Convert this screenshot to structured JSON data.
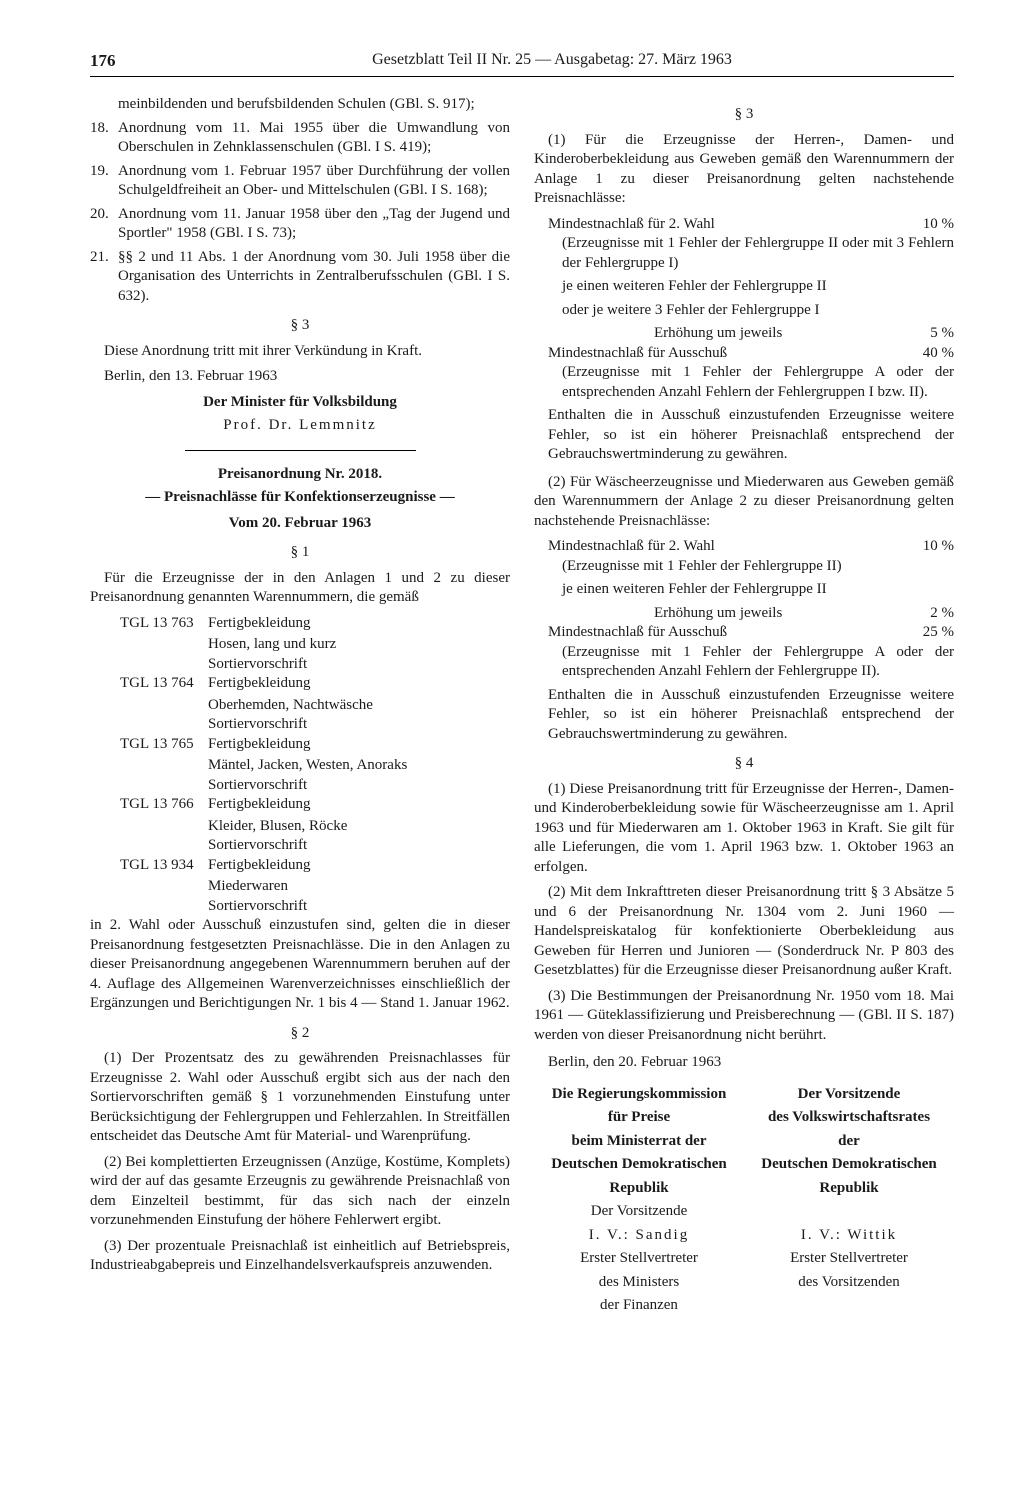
{
  "page_number": "176",
  "header": "Gesetzblatt Teil II Nr. 25 — Ausgabetag: 27. März 1963",
  "left": {
    "item17_cont": "meinbildenden und berufsbildenden Schulen (GBl. S. 917);",
    "item18": "Anordnung vom 11. Mai 1955 über die Umwandlung von Oberschulen in Zehnklassenschulen (GBl. I S. 419);",
    "item19": "Anordnung vom 1. Februar 1957 über Durchführung der vollen Schulgeldfreiheit an Ober- und Mittelschulen (GBl. I S. 168);",
    "item20": "Anordnung vom 11. Januar 1958 über den „Tag der Jugend und Sportler\" 1958 (GBl. I S. 73);",
    "item21": "§§ 2 und 11 Abs. 1 der Anordnung vom 30. Juli 1958 über die Organisation des Unterrichts in Zentralberufsschulen (GBl. I S. 632).",
    "s3": "§ 3",
    "s3_text": "Diese Anordnung tritt mit ihrer Verkündung in Kraft.",
    "date1": "Berlin, den 13. Februar 1963",
    "sign1_title": "Der Minister für Volksbildung",
    "sign1_name": "Prof. Dr. Lemmnitz",
    "order_title1": "Preisanordnung Nr. 2018.",
    "order_title2": "— Preisnachlässe für Konfektionserzeugnisse —",
    "order_date": "Vom 20. Februar 1963",
    "s1": "§ 1",
    "s1_intro": "Für die Erzeugnisse der in den Anlagen 1 und 2 zu dieser Preisanordnung genannten Warennummern, die gemäß",
    "tgl": [
      {
        "code": "TGL 13 763",
        "t": "Fertigbekleidung",
        "l2": "Hosen, lang und kurz",
        "l3": "Sortiervorschrift"
      },
      {
        "code": "TGL 13 764",
        "t": "Fertigbekleidung",
        "l2": "Oberhemden, Nachtwäsche",
        "l3": "Sortiervorschrift"
      },
      {
        "code": "TGL 13 765",
        "t": "Fertigbekleidung",
        "l2": "Mäntel, Jacken, Westen, Anoraks",
        "l3": "Sortiervorschrift"
      },
      {
        "code": "TGL 13 766",
        "t": "Fertigbekleidung",
        "l2": "Kleider, Blusen, Röcke",
        "l3": "Sortiervorschrift"
      },
      {
        "code": "TGL 13 934",
        "t": "Fertigbekleidung",
        "l2": "Miederwaren",
        "l3": "Sortiervorschrift"
      }
    ],
    "s1_after": "in 2. Wahl oder Ausschuß einzustufen sind, gelten die in dieser Preisanordnung festgesetzten Preisnachlässe. Die in den Anlagen zu dieser Preisanordnung angegebenen Warennummern beruhen auf der 4. Auflage des Allgemeinen Warenverzeichnisses einschließlich der Ergänzungen und Berichtigungen Nr. 1 bis 4 — Stand 1. Januar 1962.",
    "s2": "§ 2",
    "s2_p1": "(1) Der Prozentsatz des zu gewährenden Preisnachlasses für Erzeugnisse 2. Wahl oder Ausschuß ergibt sich aus der nach den Sortiervorschriften gemäß § 1 vorzunehmenden Einstufung unter Berücksichtigung der Fehlergruppen und Fehlerzahlen. In Streitfällen entscheidet das Deutsche Amt für Material- und Warenprüfung.",
    "s2_p2": "(2) Bei komplettierten Erzeugnissen (Anzüge, Kostüme, Komplets) wird der auf das gesamte Erzeugnis zu gewährende Preisnachlaß von dem Einzelteil bestimmt, für das sich nach der einzeln vorzunehmenden Einstufung der höhere Fehlerwert ergibt.",
    "s2_p3": "(3) Der prozentuale Preisnachlaß ist einheitlich auf Betriebspreis, Industrieabgabepreis und Einzelhandelsverkaufspreis anzuwenden."
  },
  "right": {
    "s3": "§ 3",
    "s3_p1": "(1) Für die Erzeugnisse der Herren-, Damen- und Kinderoberbekleidung aus Geweben gemäß den Warennummern der Anlage 1 zu dieser Preisanordnung gelten nachstehende Preisnachlässe:",
    "d1_label": "Mindestnachlaß für 2. Wahl",
    "d1_val": "10 %",
    "d1_sub": "(Erzeugnisse mit 1 Fehler der Fehlergruppe II oder mit 3 Fehlern der Fehlergruppe I)",
    "d2a": "je einen weiteren Fehler der Fehlergruppe II",
    "d2b": "oder je weitere 3 Fehler der Fehlergruppe I",
    "d2_label": "Erhöhung um jeweils",
    "d2_val": "5 %",
    "d3_label": "Mindestnachlaß für Ausschuß",
    "d3_val": "40 %",
    "d3_sub": "(Erzeugnisse mit 1 Fehler der Fehlergruppe A oder der entsprechenden Anzahl Fehlern der Fehlergruppen I bzw. II).",
    "d_after1": "Enthalten die in Ausschuß einzustufenden Erzeugnisse weitere Fehler, so ist ein höherer Preisnachlaß entsprechend der Gebrauchswertminderung zu gewähren.",
    "s3_p2": "(2) Für Wäscheerzeugnisse und Miederwaren aus Geweben gemäß den Warennummern der Anlage 2 zu dieser Preisanordnung gelten nachstehende Preisnachlässe:",
    "e1_label": "Mindestnachlaß für 2. Wahl",
    "e1_val": "10 %",
    "e1_sub": "(Erzeugnisse mit 1 Fehler der Fehlergruppe II)",
    "e2a": "je einen weiteren Fehler der Fehlergruppe II",
    "e2_label": "Erhöhung um jeweils",
    "e2_val": "2 %",
    "e3_label": "Mindestnachlaß für Ausschuß",
    "e3_val": "25 %",
    "e3_sub": "(Erzeugnisse mit 1 Fehler der Fehlergruppe A oder der entsprechenden Anzahl Fehlern der Fehlergruppe II).",
    "e_after": "Enthalten die in Ausschuß einzustufenden Erzeugnisse weitere Fehler, so ist ein höherer Preisnachlaß entsprechend der Gebrauchswertminderung zu gewähren.",
    "s4": "§ 4",
    "s4_p1": "(1) Diese Preisanordnung tritt für Erzeugnisse der Herren-, Damen- und Kinderoberbekleidung sowie für Wäscheerzeugnisse am 1. April 1963 und für Miederwaren am 1. Oktober 1963 in Kraft. Sie gilt für alle Lieferungen, die vom 1. April 1963 bzw. 1. Oktober 1963 an erfolgen.",
    "s4_p2": "(2) Mit dem Inkrafttreten dieser Preisanordnung tritt § 3 Absätze 5 und 6 der Preisanordnung Nr. 1304 vom 2. Juni 1960 — Handelspreiskatalog für konfektionierte Oberbekleidung aus Geweben für Herren und Junioren — (Sonderdruck Nr. P 803 des Gesetzblattes) für die Erzeugnisse dieser Preisanordnung außer Kraft.",
    "s4_p3": "(3) Die Bestimmungen der Preisanordnung Nr. 1950 vom 18. Mai 1961 — Güteklassifizierung und Preisberechnung — (GBl. II S. 187) werden von dieser Preisanordnung nicht berührt.",
    "date2": "Berlin, den 20. Februar 1963",
    "sigL1": "Die Regierungskommission",
    "sigL2": "für Preise",
    "sigL3": "beim Ministerrat der",
    "sigL4": "Deutschen Demokratischen",
    "sigL5": "Republik",
    "sigL6": "Der Vorsitzende",
    "sigL7": "I. V.: Sandig",
    "sigL8": "Erster Stellvertreter",
    "sigL9": "des Ministers",
    "sigL10": "der Finanzen",
    "sigR1": "Der Vorsitzende",
    "sigR2": "des Volkswirtschaftsrates",
    "sigR3": "der",
    "sigR4": "Deutschen Demokratischen",
    "sigR5": "Republik",
    "sigR6": "",
    "sigR7": "I. V.: Wittik",
    "sigR8": "Erster Stellvertreter",
    "sigR9": "des Vorsitzenden"
  }
}
